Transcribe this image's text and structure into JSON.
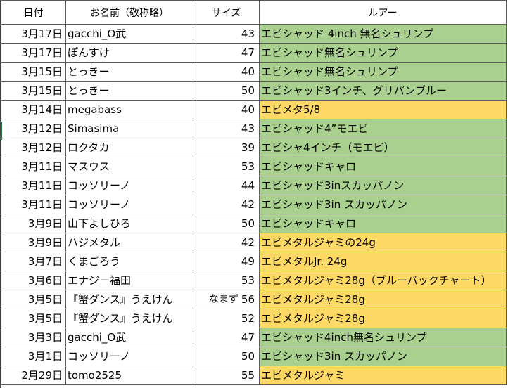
{
  "headers": {
    "date": "日付",
    "name": "お名前（敬称略）",
    "size": "サイズ",
    "lure": "ルアー"
  },
  "colors": {
    "green": "#a9d08e",
    "yellow": "#ffd966"
  },
  "rows": [
    {
      "date": "3月17日",
      "name": "gacchi_O武",
      "note": "",
      "size": "43",
      "lure": "エビシャッド 4inch 無名シュリンプ",
      "color": "green"
    },
    {
      "date": "3月17日",
      "name": "ぽんすけ",
      "note": "",
      "size": "47",
      "lure": "エビシャッド無名シュリンプ",
      "color": "green"
    },
    {
      "date": "3月15日",
      "name": "とっきー",
      "note": "",
      "size": "40",
      "lure": "エビシャッド無名シュリンプ",
      "color": "green"
    },
    {
      "date": "3月15日",
      "name": "とっきー",
      "note": "",
      "size": "50",
      "lure": "エビシャッド3インチ、グリパンブルー",
      "color": "green"
    },
    {
      "date": "3月14日",
      "name": "megabass",
      "note": "",
      "size": "40",
      "lure": "エビメタ5/8",
      "color": "yellow"
    },
    {
      "date": "3月12日",
      "name": "Simasima",
      "note": "",
      "size": "43",
      "lure": "エビシャッド4”モエビ",
      "color": "green"
    },
    {
      "date": "3月12日",
      "name": "ロクタカ",
      "note": "",
      "size": "39",
      "lure": "エビシャ4インチ（モエビ）",
      "color": "green"
    },
    {
      "date": "3月11日",
      "name": "マスウス",
      "note": "",
      "size": "53",
      "lure": "エビシャッドキャロ",
      "color": "green"
    },
    {
      "date": "3月11日",
      "name": "コッソリーノ",
      "note": "",
      "size": "44",
      "lure": "エビシャッド3inスカッパノン",
      "color": "green"
    },
    {
      "date": "3月11日",
      "name": "コッソリーノ",
      "note": "",
      "size": "42",
      "lure": "エビシャッド3in スカッパノン",
      "color": "green"
    },
    {
      "date": "3月9日",
      "name": "山下よしひろ",
      "note": "",
      "size": "50",
      "lure": "エビシャッドキャロ",
      "color": "green"
    },
    {
      "date": "3月9日",
      "name": "ハジメタル",
      "note": "",
      "size": "42",
      "lure": "エビメタルジャミの24g",
      "color": "yellow"
    },
    {
      "date": "3月7日",
      "name": "くまごろう",
      "note": "",
      "size": "49",
      "lure": "エビメタルJr. 24g",
      "color": "yellow"
    },
    {
      "date": "3月6日",
      "name": "エナジー福田",
      "note": "",
      "size": "53",
      "lure": "エビメタルジャミ28g（ブルーバックチャート）",
      "color": "yellow"
    },
    {
      "date": "3月5日",
      "name": "『蟹ダンス』うえけん",
      "note": "なまず",
      "size": "56",
      "lure": "エビメタルジャミ28g",
      "color": "yellow"
    },
    {
      "date": "3月5日",
      "name": "『蟹ダンス』うえけん",
      "note": "",
      "size": "52",
      "lure": "エビメタルジャミ28g",
      "color": "yellow"
    },
    {
      "date": "3月3日",
      "name": "gacchi_O武",
      "note": "",
      "size": "47",
      "lure": "エビシャッド4inch無名シュリンプ",
      "color": "green"
    },
    {
      "date": "3月1日",
      "name": "コッソリーノ",
      "note": "",
      "size": "50",
      "lure": "エビシャッド3in スカッパノン",
      "color": "green"
    },
    {
      "date": "2月29日",
      "name": "tomo2525",
      "note": "",
      "size": "55",
      "lure": "エビメタルジャミ",
      "color": "yellow"
    }
  ]
}
